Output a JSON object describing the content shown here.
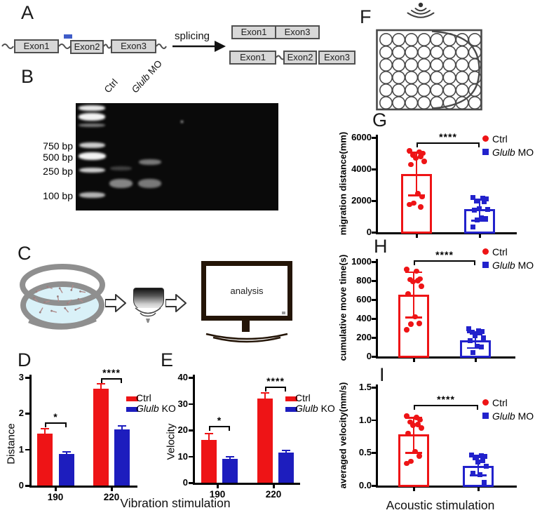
{
  "panelA": {
    "letter": "A",
    "exons": [
      "Exon1",
      "Exon2",
      "Exon3"
    ],
    "splicing_label": "splicing",
    "product1": [
      "Exon1",
      "Exon3"
    ],
    "product2": [
      "Exon1",
      "Exon2",
      "Exon3"
    ],
    "mo_color": "#3f5cc8"
  },
  "panelB": {
    "letter": "B",
    "lanes": [
      {
        "text": "Ctrl",
        "italic": ""
      },
      {
        "text": "Glulb MO",
        "italic": "Glulb"
      }
    ],
    "ladder_labels": [
      "750 bp",
      "500 bp",
      "250 bp",
      "100 bp"
    ]
  },
  "panelC": {
    "letter": "C",
    "screen_text": "analysis"
  },
  "panelF": {
    "letter": "F",
    "plate_rows": 6,
    "plate_cols": 8
  },
  "colors": {
    "ctrl_red": "#ee1416",
    "ko_blue": "#1d1dbe",
    "mo_blue": "#2222cc"
  },
  "chart_data": [
    {
      "panel": "D",
      "letter": "D",
      "type": "bar",
      "ylabel": "Distance",
      "yticks": [
        "0",
        "1",
        "2",
        "3"
      ],
      "categories": [
        "190",
        "220"
      ],
      "series": [
        {
          "name": "Ctrl",
          "italic": "",
          "color": "#ee1416",
          "values": [
            1.45,
            2.68
          ],
          "errors": [
            0.15,
            0.16
          ]
        },
        {
          "name": "Glulb KO",
          "italic": "Glulb",
          "color": "#1d1dbe",
          "values": [
            0.88,
            1.55
          ],
          "errors": [
            0.08,
            0.13
          ]
        }
      ],
      "significance": [
        "*",
        "****"
      ],
      "xlabel": "Vibration stimulation"
    },
    {
      "panel": "E",
      "letter": "E",
      "type": "bar",
      "ylabel": "Velocity",
      "yticks": [
        "0",
        "10",
        "20",
        "30",
        "40"
      ],
      "categories": [
        "190",
        "220"
      ],
      "series": [
        {
          "name": "Ctrl",
          "italic": "",
          "color": "#ee1416",
          "values": [
            16.3,
            32.0
          ],
          "errors": [
            2.7,
            2.5
          ]
        },
        {
          "name": "Glulb KO",
          "italic": "Glulb",
          "color": "#1d1dbe",
          "values": [
            9.2,
            11.5
          ],
          "errors": [
            0.9,
            1.1
          ]
        }
      ],
      "significance": [
        "*",
        "****"
      ],
      "xlabel": ""
    },
    {
      "panel": "G",
      "letter": "G",
      "type": "scatter_bar",
      "ylabel": "migration distance(mm)",
      "yticks": [
        "0",
        "2000",
        "4000",
        "6000"
      ],
      "significance": "****",
      "groups": [
        {
          "name": "Ctrl",
          "italic": "",
          "marker": "circle",
          "color": "#ee1416",
          "mean": 3700,
          "err_low": 2400,
          "err_high": 5100,
          "points": [
            5150,
            5100,
            5000,
            4900,
            4800,
            4700,
            4500,
            4300,
            2450,
            2250,
            1850,
            1750,
            1600
          ]
        },
        {
          "name": "Glulb MO",
          "italic": "Glulb",
          "marker": "square",
          "color": "#2222cc",
          "mean": 1450,
          "err_low": 800,
          "err_high": 2150,
          "points": [
            2200,
            2150,
            2100,
            2000,
            1950,
            1500,
            1450,
            1400,
            900,
            850,
            800,
            350
          ]
        }
      ],
      "xlabel": ""
    },
    {
      "panel": "H",
      "letter": "H",
      "type": "scatter_bar",
      "ylabel": "cumulative move time(s)",
      "yticks": [
        "0",
        "200",
        "400",
        "600",
        "800",
        "1000"
      ],
      "significance": "****",
      "groups": [
        {
          "name": "Ctrl",
          "italic": "",
          "marker": "circle",
          "color": "#ee1416",
          "mean": 655,
          "err_low": 420,
          "err_high": 900,
          "points": [
            920,
            900,
            820,
            810,
            800,
            790,
            740,
            660,
            420,
            350,
            340,
            280
          ]
        },
        {
          "name": "Glulb MO",
          "italic": "Glulb",
          "marker": "square",
          "color": "#2222cc",
          "mean": 170,
          "err_low": 100,
          "err_high": 265,
          "points": [
            290,
            270,
            265,
            255,
            250,
            220,
            200,
            170,
            110,
            100,
            40
          ]
        }
      ],
      "xlabel": ""
    },
    {
      "panel": "I",
      "letter": "I",
      "type": "scatter_bar",
      "ylabel": "averaged velocity(mm/s)",
      "yticks": [
        "0.0",
        "0.5",
        "1.0",
        "1.5"
      ],
      "significance": "****",
      "groups": [
        {
          "name": "Ctrl",
          "italic": "",
          "marker": "circle",
          "color": "#ee1416",
          "mean": 0.78,
          "err_low": 0.51,
          "err_high": 1.05,
          "points": [
            1.06,
            1.04,
            1.0,
            0.97,
            0.93,
            0.92,
            0.88,
            0.8,
            0.52,
            0.45,
            0.37,
            0.34
          ]
        },
        {
          "name": "Glulb MO",
          "italic": "Glulb",
          "marker": "square",
          "color": "#2222cc",
          "mean": 0.3,
          "err_low": 0.17,
          "err_high": 0.47,
          "points": [
            0.47,
            0.46,
            0.44,
            0.42,
            0.38,
            0.36,
            0.3,
            0.19,
            0.17,
            0.05
          ]
        }
      ],
      "xlabel": "Acoustic stimulation"
    }
  ]
}
